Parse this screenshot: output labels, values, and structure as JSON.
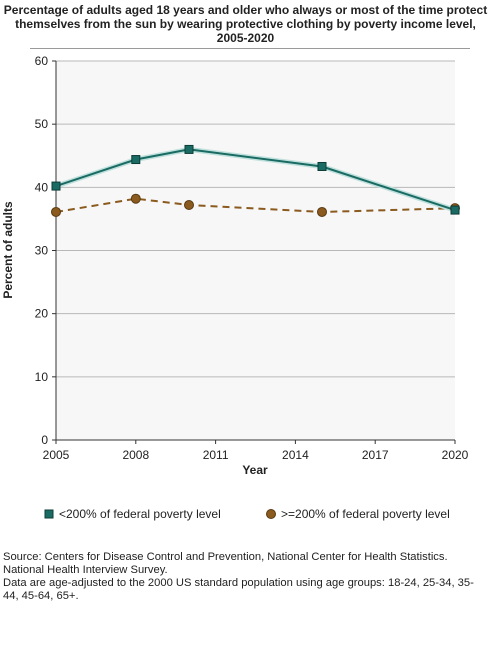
{
  "chart_data": {
    "type": "line",
    "title": "Percentage of adults aged 18 years and older who always or most of the time protect themselves from the sun by wearing protective clothing by poverty income level, 2005-2020",
    "xlabel": "Year",
    "ylabel": "Percent of adults",
    "xlim": [
      2005,
      2020
    ],
    "ylim": [
      0,
      60
    ],
    "x_ticks": [
      "2005",
      "2008",
      "2011",
      "2014",
      "2017",
      "2020"
    ],
    "y_ticks": [
      "0",
      "10",
      "20",
      "30",
      "40",
      "50",
      "60"
    ],
    "grid": true,
    "legend_position": "bottom",
    "series": [
      {
        "name": "<200% of federal poverty level",
        "color": "#1a6b63",
        "marker": "square",
        "line_style": "solid",
        "x": [
          2005,
          2008,
          2010,
          2015,
          2020
        ],
        "values": [
          40.2,
          44.4,
          46.0,
          43.3,
          36.4
        ]
      },
      {
        "name": ">=200% of federal poverty level",
        "color": "#8a5a1e",
        "marker": "circle",
        "line_style": "dashed",
        "x": [
          2005,
          2008,
          2010,
          2015,
          2020
        ],
        "values": [
          36.1,
          38.2,
          37.2,
          36.1,
          36.7
        ]
      }
    ]
  },
  "source": {
    "line1": "Source: Centers for Disease Control and Prevention, National Center for Health Statistics. National Health Interview Survey.",
    "line2": "Data are age-adjusted to the 2000 US standard population using age groups: 18-24, 25-34, 35-44, 45-64, 65+."
  }
}
